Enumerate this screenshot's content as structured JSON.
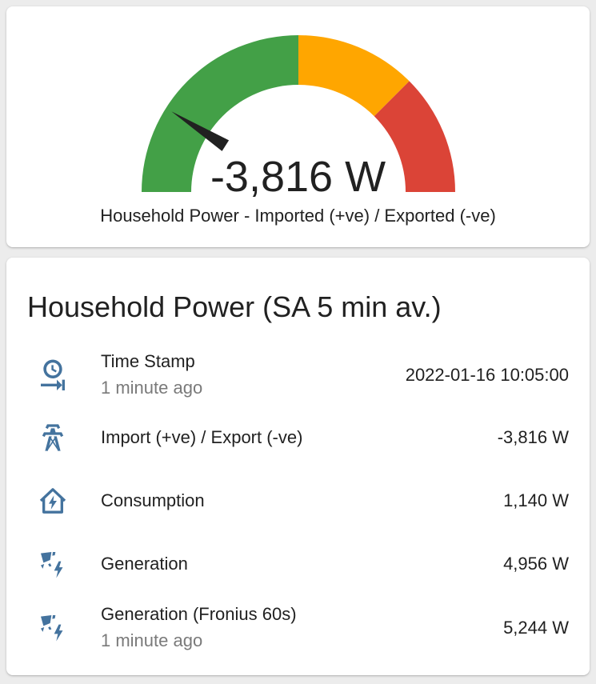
{
  "colors": {
    "gauge_green": "#43a047",
    "gauge_orange": "#ffa600",
    "gauge_red": "#db4437",
    "needle": "#212121",
    "icon": "#44739e",
    "secondary_text": "#7a7a7a"
  },
  "gauge": {
    "value": -3816,
    "value_text": "-3,816 W",
    "label": "Household Power - Imported (+ve) / Exported (-ve)",
    "needle_position": 0.18,
    "segments": [
      {
        "color": "green",
        "from": 0.0,
        "to": 0.5
      },
      {
        "color": "orange",
        "from": 0.5,
        "to": 0.75
      },
      {
        "color": "red",
        "from": 0.75,
        "to": 1.0
      }
    ]
  },
  "entities_card": {
    "title": "Household Power (SA 5 min av.)",
    "rows": [
      {
        "icon": "clock-end-icon",
        "name": "Time Stamp",
        "secondary": "1 minute ago",
        "state": "2022-01-16 10:05:00"
      },
      {
        "icon": "transmission-tower-icon",
        "name": "Import (+ve) / Export (-ve)",
        "state": "-3,816 W"
      },
      {
        "icon": "home-lightning-icon",
        "name": "Consumption",
        "state": "1,140 W"
      },
      {
        "icon": "solar-power-icon",
        "name": "Generation",
        "state": "4,956 W"
      },
      {
        "icon": "solar-power-icon",
        "name": "Generation (Fronius 60s)",
        "secondary": "1 minute ago",
        "state": "5,244 W"
      }
    ]
  }
}
